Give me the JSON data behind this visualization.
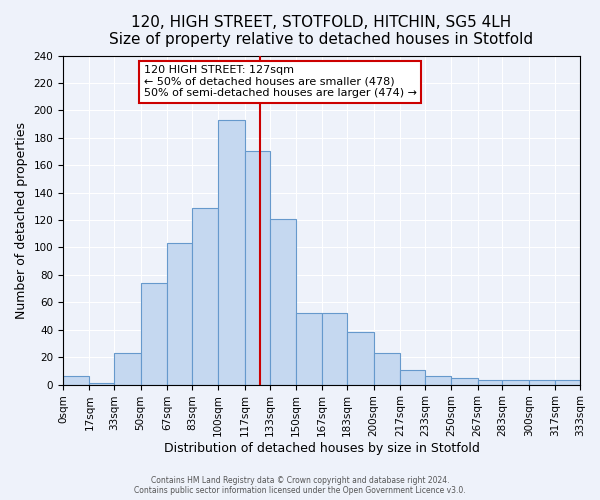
{
  "title": "120, HIGH STREET, STOTFOLD, HITCHIN, SG5 4LH",
  "subtitle": "Size of property relative to detached houses in Stotfold",
  "xlabel": "Distribution of detached houses by size in Stotfold",
  "ylabel": "Number of detached properties",
  "bin_edges": [
    0,
    17,
    33,
    50,
    67,
    83,
    100,
    117,
    133,
    150,
    167,
    183,
    200,
    217,
    233,
    250,
    267,
    283,
    300,
    317,
    333
  ],
  "bar_heights": [
    6,
    1,
    23,
    74,
    103,
    129,
    193,
    170,
    121,
    52,
    52,
    38,
    23,
    11,
    6,
    5,
    3,
    3,
    3,
    3
  ],
  "bar_color": "#c5d8f0",
  "bar_edge_color": "#6699cc",
  "vline_x": 127,
  "vline_color": "#cc0000",
  "annotation_title": "120 HIGH STREET: 127sqm",
  "annotation_line1": "← 50% of detached houses are smaller (478)",
  "annotation_line2": "50% of semi-detached houses are larger (474) →",
  "annotation_box_color": "#ffffff",
  "annotation_box_edge_color": "#cc0000",
  "ylim": [
    0,
    240
  ],
  "yticks": [
    0,
    20,
    40,
    60,
    80,
    100,
    120,
    140,
    160,
    180,
    200,
    220,
    240
  ],
  "xtick_labels": [
    "0sqm",
    "17sqm",
    "33sqm",
    "50sqm",
    "67sqm",
    "83sqm",
    "100sqm",
    "117sqm",
    "133sqm",
    "150sqm",
    "167sqm",
    "183sqm",
    "200sqm",
    "217sqm",
    "233sqm",
    "250sqm",
    "267sqm",
    "283sqm",
    "300sqm",
    "317sqm",
    "333sqm"
  ],
  "footer1": "Contains HM Land Registry data © Crown copyright and database right 2024.",
  "footer2": "Contains public sector information licensed under the Open Government Licence v3.0.",
  "bg_color": "#eef2fa",
  "grid_color": "#ffffff",
  "title_fontsize": 11,
  "subtitle_fontsize": 10,
  "axis_fontsize": 9,
  "tick_fontsize": 7.5
}
